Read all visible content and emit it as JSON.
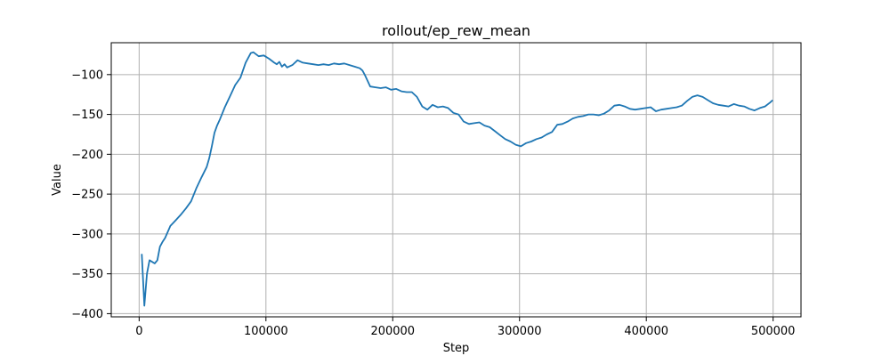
{
  "chart_data": {
    "type": "line",
    "title": "rollout/ep_rew_mean",
    "xlabel": "Step",
    "ylabel": "Value",
    "xlim": [
      -22000,
      522000
    ],
    "ylim": [
      -404,
      -60
    ],
    "xticks": [
      0,
      100000,
      200000,
      300000,
      400000,
      500000
    ],
    "xtick_labels": [
      "0",
      "100000",
      "200000",
      "300000",
      "400000",
      "500000"
    ],
    "yticks": [
      -100,
      -150,
      -200,
      -250,
      -300,
      -350,
      -400
    ],
    "ytick_labels": [
      "−100",
      "−150",
      "−200",
      "−250",
      "−300",
      "−350",
      "−400"
    ],
    "grid": true,
    "legend": "none",
    "series": [
      {
        "color": "#1f77b4",
        "x": [
          2048,
          4096,
          6144,
          8192,
          10240,
          12288,
          14336,
          16384,
          18432,
          20480,
          24576,
          28672,
          32768,
          36864,
          40960,
          45056,
          49152,
          53248,
          55296,
          57344,
          59392,
          61440,
          63488,
          67584,
          71680,
          75776,
          79872,
          83968,
          88064,
          90112,
          94208,
          98304,
          102400,
          106496,
          108544,
          110592,
          112640,
          114688,
          116736,
          120832,
          124928,
          129024,
          133120,
          137216,
          141312,
          145408,
          149504,
          153600,
          157696,
          161792,
          165888,
          169984,
          174080,
          176128,
          178176,
          182272,
          186368,
          190464,
          194560,
          198656,
          202752,
          206848,
          210944,
          215040,
          219136,
          223232,
          227328,
          231424,
          235520,
          239616,
          243712,
          247808,
          251904,
          256000,
          260096,
          264192,
          268288,
          272384,
          276480,
          280576,
          284672,
          288768,
          292864,
          296960,
          301056,
          305152,
          309248,
          313344,
          317440,
          321536,
          325632,
          329728,
          333824,
          337920,
          342016,
          346112,
          350208,
          354304,
          358400,
          362496,
          366592,
          370688,
          374784,
          378880,
          382976,
          387072,
          391168,
          395264,
          399360,
          403456,
          407552,
          411648,
          415744,
          419840,
          423936,
          428032,
          432128,
          436224,
          440320,
          444416,
          448512,
          452608,
          456704,
          460800,
          464896,
          468992,
          473088,
          477184,
          481280,
          485376,
          489472,
          493568,
          497664,
          499712
        ],
        "y": [
          -325,
          -390,
          -350,
          -333,
          -335,
          -337,
          -333,
          -316,
          -310,
          -305,
          -290,
          -283,
          -276,
          -268,
          -259,
          -243,
          -229,
          -216,
          -205,
          -190,
          -173,
          -164,
          -157,
          -141,
          -127,
          -113,
          -104,
          -85,
          -73,
          -72,
          -77,
          -76,
          -80,
          -85,
          -87,
          -84,
          -90,
          -87,
          -91,
          -88,
          -82,
          -85,
          -86,
          -87,
          -88,
          -87,
          -88,
          -86,
          -87,
          -86,
          -88,
          -90,
          -92,
          -95,
          -101,
          -115,
          -116,
          -117,
          -116,
          -119,
          -118,
          -121,
          -122,
          -122,
          -128,
          -140,
          -144,
          -138,
          -141,
          -140,
          -142,
          -148,
          -150,
          -159,
          -162,
          -161,
          -160,
          -164,
          -166,
          -171,
          -176,
          -181,
          -184,
          -188,
          -190,
          -186,
          -184,
          -181,
          -179,
          -175,
          -172,
          -163,
          -162,
          -159,
          -155,
          -153,
          -152,
          -150,
          -150,
          -151,
          -149,
          -145,
          -139,
          -138,
          -140,
          -143,
          -144,
          -143,
          -142,
          -141,
          -146,
          -144,
          -143,
          -142,
          -141,
          -139,
          -133,
          -128,
          -126,
          -128,
          -132,
          -136,
          -138,
          -139,
          -140,
          -137,
          -139,
          -140,
          -143,
          -145,
          -142,
          -140,
          -135,
          -132
        ]
      }
    ]
  }
}
